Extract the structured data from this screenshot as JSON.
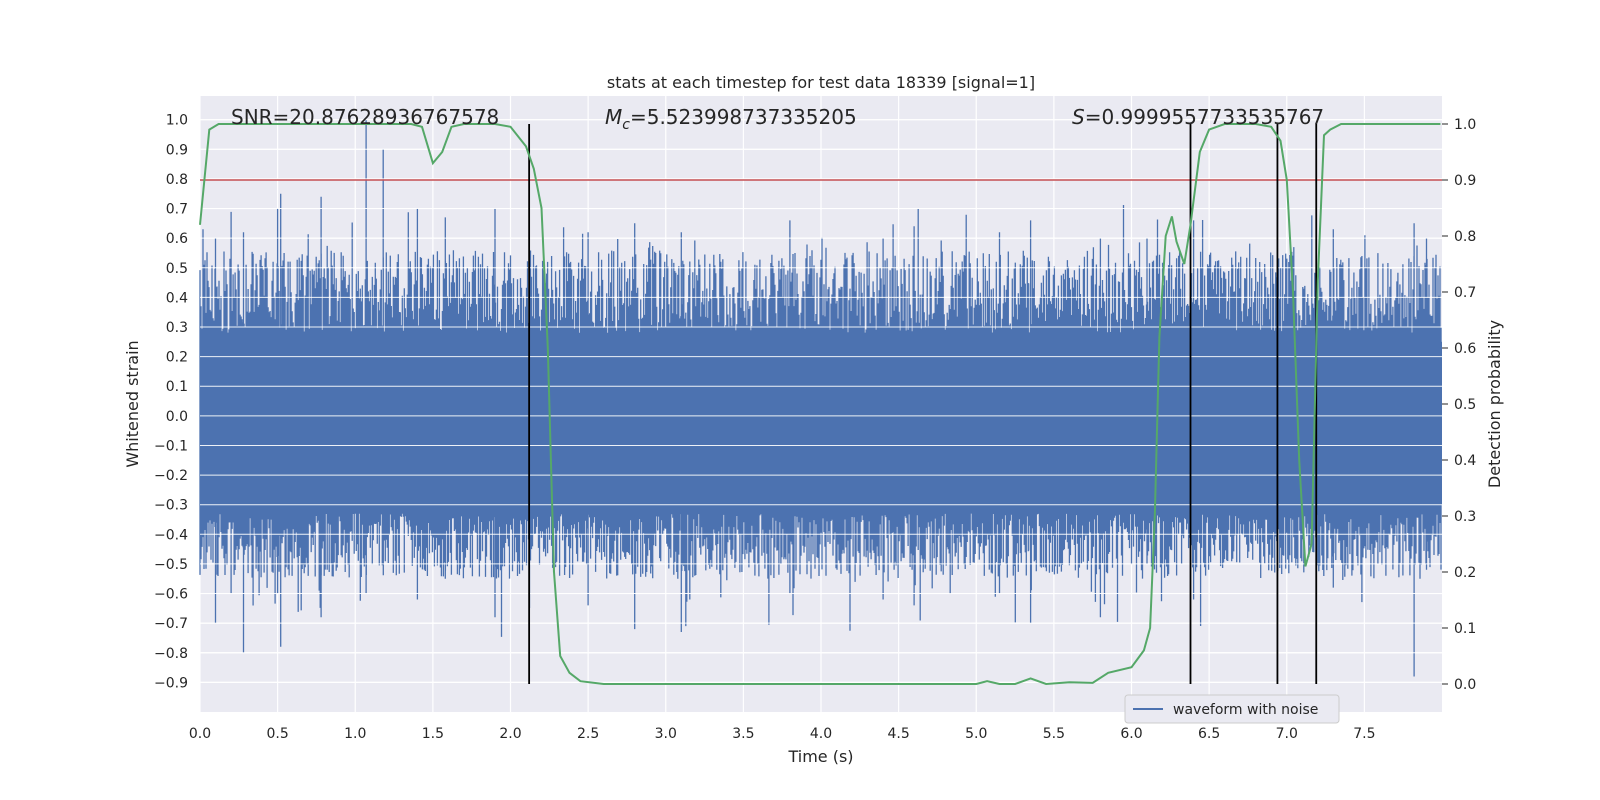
{
  "chart_data": {
    "type": "line",
    "title": "stats at each timestep for test data 18339 [signal=1]",
    "xlabel": "Time (s)",
    "ylabel_left": "Whitened strain",
    "ylabel_right": "Detection probability",
    "xlim": [
      0.0,
      8.0
    ],
    "ylim_left": [
      -1.0,
      1.08
    ],
    "ylim_right": [
      -0.05,
      1.05
    ],
    "x_ticks": [
      "0.0",
      "0.5",
      "1.0",
      "1.5",
      "2.0",
      "2.5",
      "3.0",
      "3.5",
      "4.0",
      "4.5",
      "5.0",
      "5.5",
      "6.0",
      "6.5",
      "7.0",
      "7.5"
    ],
    "y_ticks_left": [
      "-0.9",
      "-0.8",
      "-0.7",
      "-0.6",
      "-0.5",
      "-0.4",
      "-0.3",
      "-0.2",
      "-0.1",
      "0.0",
      "0.1",
      "0.2",
      "0.3",
      "0.4",
      "0.5",
      "0.6",
      "0.7",
      "0.8",
      "0.9",
      "1.0"
    ],
    "y_ticks_right": [
      "0.0",
      "0.1",
      "0.2",
      "0.3",
      "0.4",
      "0.5",
      "0.6",
      "0.7",
      "0.8",
      "0.9",
      "1.0"
    ],
    "grid": true,
    "legend": {
      "position": "lower-right",
      "entries": [
        "waveform with noise"
      ]
    },
    "annotations": {
      "snr": "SNR=20.87628936767578",
      "mc_symbol": "M",
      "mc_sub": "c",
      "mc_value": "=5.523998737335205",
      "s_symbol": "S",
      "s_value": "=0.9999557733535767"
    },
    "threshold_line": {
      "probability": 0.9,
      "color": "#c44e52"
    },
    "vertical_lines_s": [
      2.12,
      6.38,
      6.94,
      7.19
    ],
    "waveform": {
      "name": "waveform with noise",
      "color": "#4c72b0",
      "duration_s": 8.0,
      "band_min": -0.3,
      "band_max": 0.25,
      "spikes": [
        [
          0.1,
          0.6,
          -0.7
        ],
        [
          0.2,
          0.67,
          -0.6
        ],
        [
          0.28,
          0.62,
          -0.8
        ],
        [
          0.5,
          0.7,
          -0.6
        ],
        [
          0.52,
          0.75,
          -0.78
        ],
        [
          0.78,
          0.74,
          -0.68
        ],
        [
          1.07,
          1.0,
          -0.6
        ],
        [
          1.18,
          0.9,
          -0.5
        ],
        [
          1.4,
          0.7,
          -0.62
        ],
        [
          1.58,
          0.67,
          -0.55
        ],
        [
          1.9,
          0.7,
          -0.68
        ],
        [
          2.5,
          0.62,
          -0.64
        ],
        [
          2.8,
          0.65,
          -0.72
        ],
        [
          3.1,
          0.62,
          -0.73
        ],
        [
          3.8,
          0.66,
          -0.6
        ],
        [
          4.4,
          0.6,
          -0.62
        ],
        [
          4.6,
          0.64,
          -0.64
        ],
        [
          5.15,
          0.62,
          -0.6
        ],
        [
          5.35,
          0.66,
          -0.7
        ],
        [
          5.8,
          0.6,
          -0.68
        ],
        [
          6.1,
          0.6,
          -0.5
        ],
        [
          6.4,
          0.66,
          -0.62
        ],
        [
          7.3,
          0.63,
          -0.58
        ],
        [
          7.82,
          0.65,
          -0.88
        ],
        [
          7.9,
          0.6,
          -0.52
        ]
      ]
    },
    "series": [
      {
        "name": "Detection probability",
        "color": "#55a868",
        "axis": "right",
        "x": [
          0.0,
          0.06,
          0.12,
          0.3,
          0.5,
          0.8,
          1.0,
          1.2,
          1.36,
          1.43,
          1.5,
          1.56,
          1.62,
          1.7,
          1.9,
          2.0,
          2.1,
          2.15,
          2.2,
          2.24,
          2.28,
          2.32,
          2.38,
          2.45,
          2.6,
          3.0,
          3.5,
          4.0,
          4.3,
          4.6,
          5.0,
          5.07,
          5.15,
          5.25,
          5.35,
          5.45,
          5.6,
          5.75,
          5.85,
          6.0,
          6.08,
          6.12,
          6.15,
          6.18,
          6.22,
          6.26,
          6.29,
          6.34,
          6.38,
          6.44,
          6.5,
          6.6,
          6.8,
          6.9,
          6.96,
          7.0,
          7.04,
          7.08,
          7.12,
          7.16,
          7.2,
          7.24,
          7.28,
          7.35,
          7.5,
          7.7,
          7.99
        ],
        "y": [
          0.82,
          0.99,
          1.0,
          1.0,
          1.0,
          1.0,
          1.0,
          1.0,
          1.0,
          0.995,
          0.93,
          0.95,
          0.995,
          1.0,
          1.0,
          0.995,
          0.96,
          0.92,
          0.85,
          0.6,
          0.2,
          0.05,
          0.02,
          0.005,
          0.0,
          0.0,
          0.0,
          0.0,
          0.0,
          0.0,
          0.0,
          0.005,
          0.0,
          0.0,
          0.01,
          0.0,
          0.003,
          0.002,
          0.02,
          0.03,
          0.06,
          0.1,
          0.3,
          0.62,
          0.8,
          0.835,
          0.79,
          0.75,
          0.82,
          0.95,
          0.99,
          1.0,
          1.0,
          0.995,
          0.97,
          0.9,
          0.7,
          0.4,
          0.21,
          0.25,
          0.72,
          0.98,
          0.99,
          1.0,
          1.0,
          1.0,
          1.0
        ]
      }
    ]
  }
}
